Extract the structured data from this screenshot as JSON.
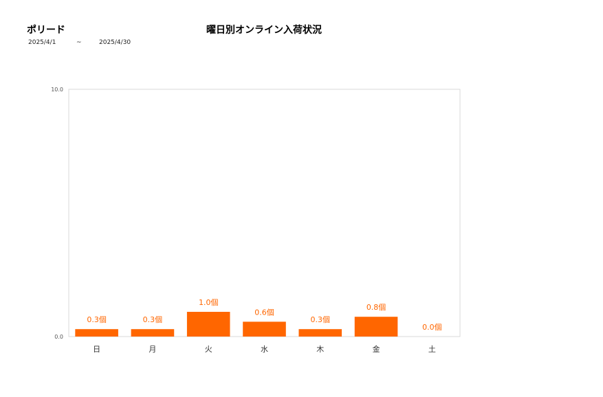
{
  "header": {
    "brand": "ポリード",
    "title": "曜日別オンライン入荷状況",
    "date_start": "2025/4/1",
    "date_separator": "~",
    "date_end": "2025/4/30"
  },
  "chart_data": {
    "type": "bar",
    "categories": [
      "日",
      "月",
      "火",
      "水",
      "木",
      "金",
      "土"
    ],
    "values": [
      0.3,
      0.3,
      1.0,
      0.6,
      0.3,
      0.8,
      0.0
    ],
    "data_labels": [
      "0.3個",
      "0.3個",
      "1.0個",
      "0.6個",
      "0.3個",
      "0.8個",
      "0.0個"
    ],
    "ylim": [
      0,
      10
    ],
    "yticks": [
      "0.0",
      "10.0"
    ],
    "grid": false,
    "bar_color": "#ff6600"
  }
}
